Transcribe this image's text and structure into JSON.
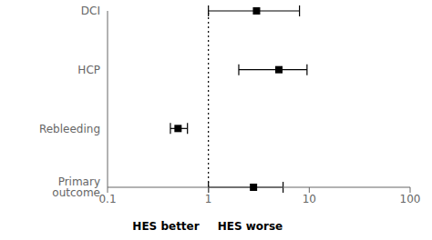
{
  "chart_data": {
    "type": "scatter",
    "categories": [
      "DCI",
      "HCP",
      "Rebleeding",
      "Primary outcome"
    ],
    "values": [
      3.0,
      5.0,
      0.5,
      2.8
    ],
    "ci_low": [
      1.0,
      2.0,
      0.42,
      1.0
    ],
    "ci_high": [
      8.0,
      9.5,
      0.62,
      5.5
    ],
    "reference_line": 1.0,
    "xlim": [
      0.1,
      100
    ],
    "xticks": [
      0.1,
      1,
      10,
      100
    ],
    "log": "x",
    "annotations": [
      "HES better",
      "HES worse"
    ],
    "color": "black",
    "marker": "square",
    "grid": false
  }
}
